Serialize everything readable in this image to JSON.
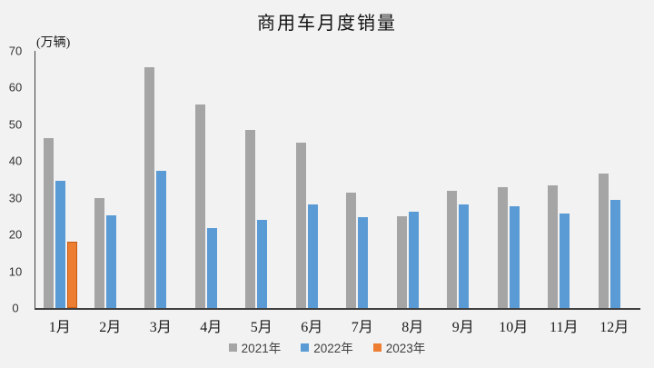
{
  "header": {
    "title": "商用车月度销量"
  },
  "y_axis": {
    "unit_label": "(万辆)"
  },
  "colors": {
    "background": "#f2f2f2",
    "axis": "#404040",
    "series_2021": "#a5a5a5",
    "series_2022": "#5b9bd5",
    "series_2023": "#ed7d31",
    "series_2023_border": "#c55a11"
  },
  "chart_data": {
    "type": "bar",
    "title": "商用车月度销量",
    "xlabel": "",
    "ylabel": "(万辆)",
    "ylim": [
      0,
      70
    ],
    "y_ticks": [
      70,
      60,
      50,
      40,
      30,
      20,
      10,
      0
    ],
    "grid": false,
    "legend_position": "bottom",
    "categories": [
      "1月",
      "2月",
      "3月",
      "4月",
      "5月",
      "6月",
      "7月",
      "8月",
      "9月",
      "10月",
      "11月",
      "12月"
    ],
    "series": [
      {
        "name": "2021年",
        "color": "#a5a5a5",
        "values": [
          46.3,
          30.0,
          65.5,
          55.3,
          48.5,
          45.0,
          31.5,
          25.0,
          32.0,
          32.9,
          33.3,
          36.6
        ]
      },
      {
        "name": "2022年",
        "color": "#5b9bd5",
        "values": [
          34.6,
          25.2,
          37.3,
          21.8,
          24.0,
          28.3,
          24.8,
          26.1,
          28.1,
          27.6,
          25.7,
          29.5
        ]
      },
      {
        "name": "2023年",
        "color": "#ed7d31",
        "border_color": "#c55a11",
        "values": [
          18.1,
          null,
          null,
          null,
          null,
          null,
          null,
          null,
          null,
          null,
          null,
          null
        ]
      }
    ]
  }
}
